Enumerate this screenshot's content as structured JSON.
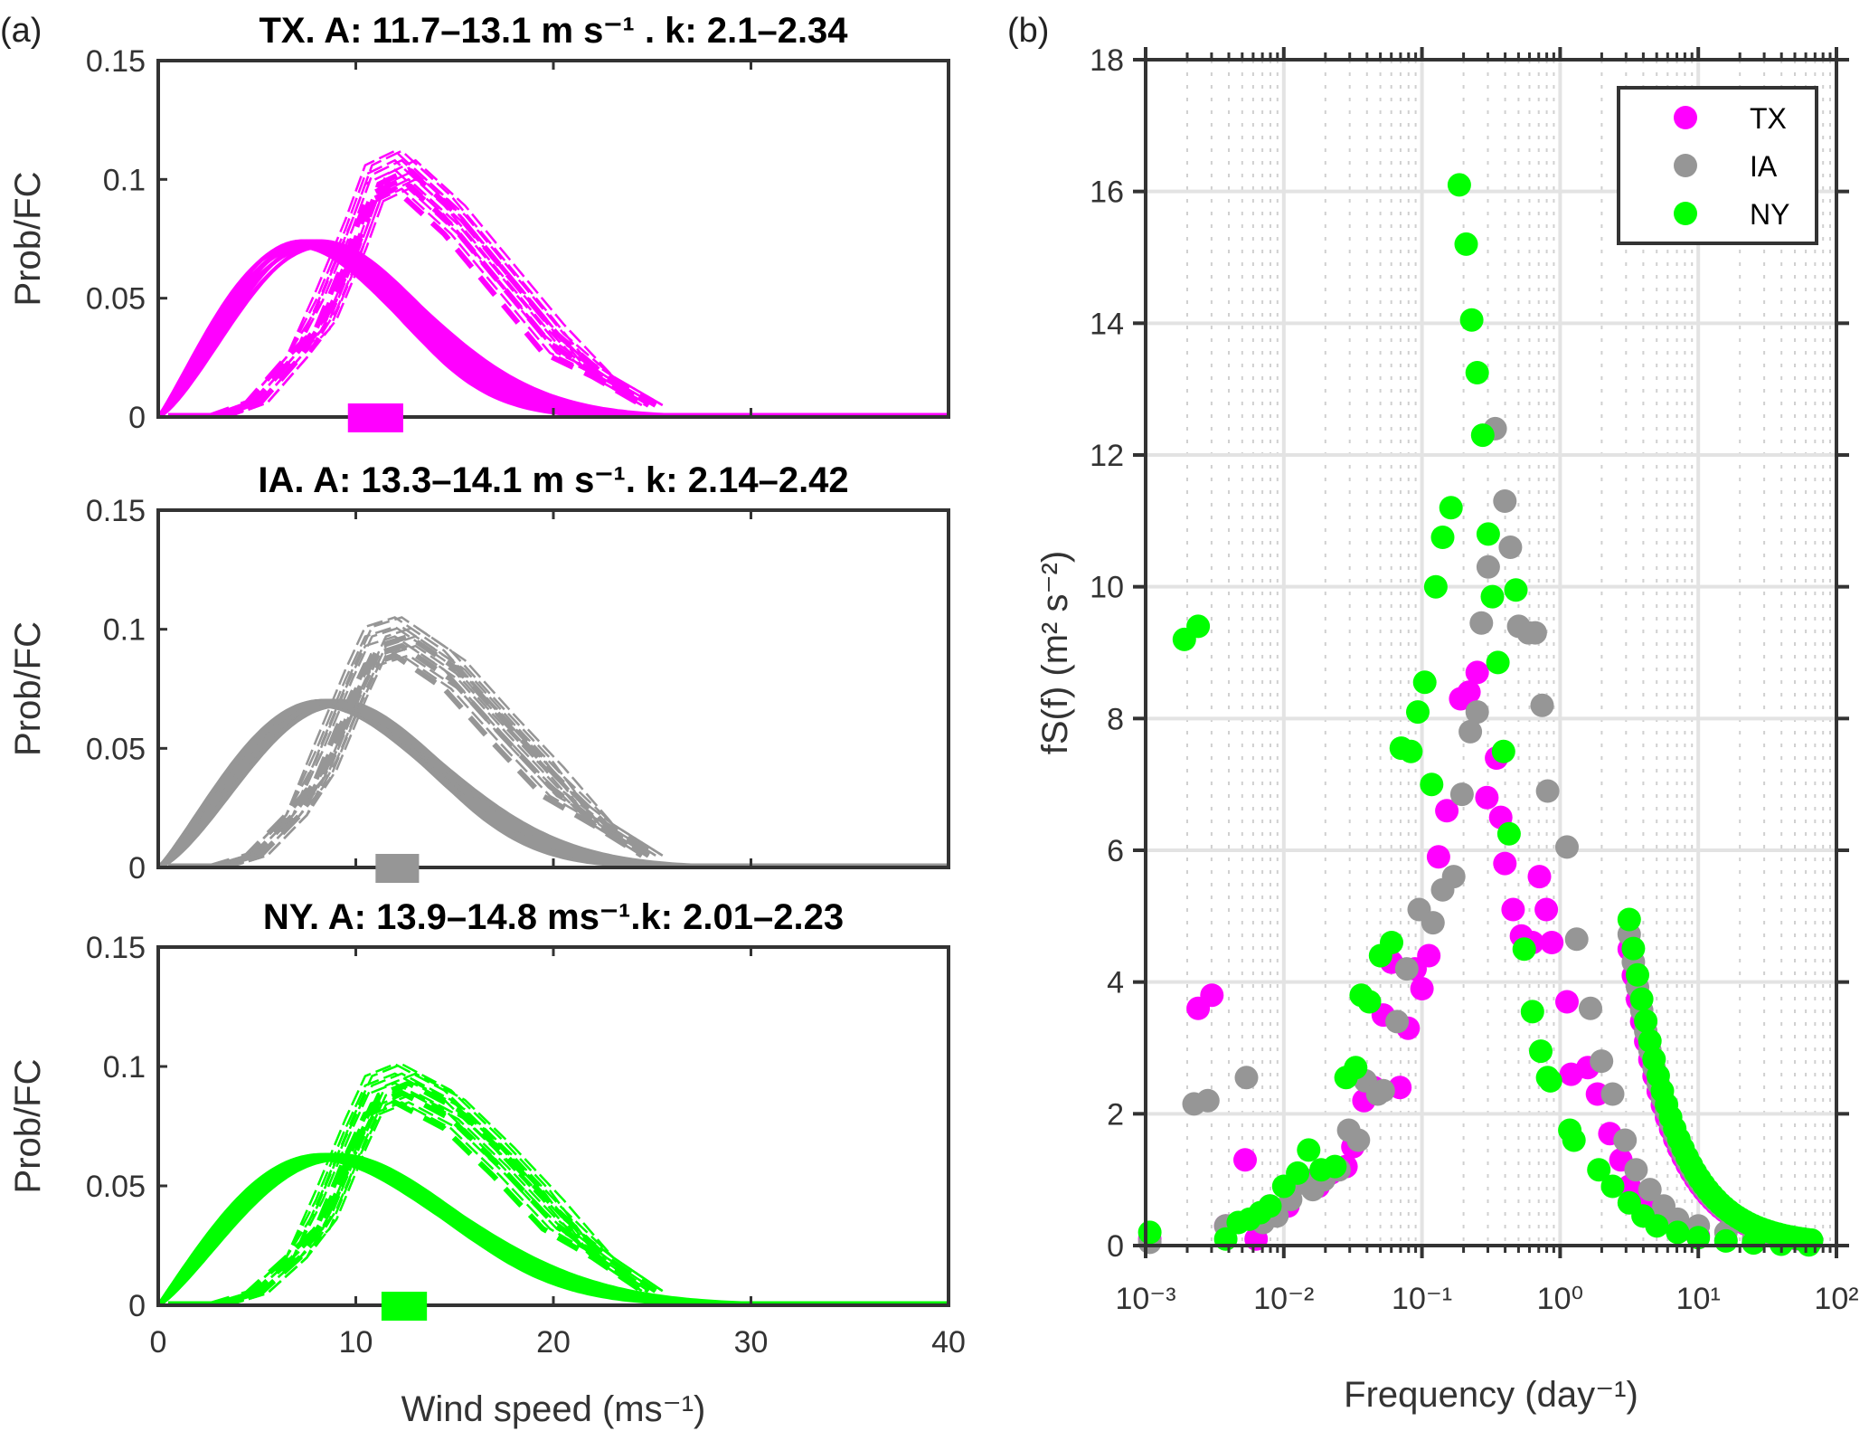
{
  "figure": {
    "panel_a_label": "(a)",
    "panel_b_label": "(b)"
  },
  "chart_data": [
    {
      "type": "line",
      "panel": "a-TX",
      "title": "TX. A: 11.7–13.1 m s⁻¹ . k: 2.1–2.34",
      "state": "TX",
      "color": "#ff00ff",
      "weibull_A_range": [
        11.7,
        13.1
      ],
      "weibull_k_range": [
        2.1,
        2.34
      ],
      "ylabel": "Prob/FC",
      "xlabel": "",
      "xlim": [
        0,
        40
      ],
      "ylim": [
        0,
        0.15
      ],
      "xticks": [
        0,
        10,
        20,
        30,
        40
      ],
      "yticks": [
        0,
        0.05,
        0.1,
        0.15
      ],
      "ytick_labels": [
        "0",
        "0.05",
        "0.1",
        "0.15"
      ],
      "marker_wind_range": [
        9.6,
        12.4
      ],
      "pdf_peak": 0.074,
      "fc_curve": {
        "x": [
          3,
          5,
          7,
          8.5,
          10,
          11,
          12.5,
          15,
          17.5,
          20,
          22.5,
          25
        ],
        "y": [
          0,
          0.006,
          0.025,
          0.045,
          0.075,
          0.098,
          0.104,
          0.085,
          0.06,
          0.035,
          0.017,
          0.005
        ]
      }
    },
    {
      "type": "line",
      "panel": "a-IA",
      "title": "IA. A: 13.3–14.1 m s⁻¹. k: 2.14–2.42",
      "state": "IA",
      "color": "#969696",
      "weibull_A_range": [
        13.3,
        14.1
      ],
      "weibull_k_range": [
        2.14,
        2.42
      ],
      "ylabel": "Prob/FC",
      "xlabel": "",
      "xlim": [
        0,
        40
      ],
      "ylim": [
        0,
        0.15
      ],
      "xticks": [
        0,
        10,
        20,
        30,
        40
      ],
      "yticks": [
        0,
        0.05,
        0.1,
        0.15
      ],
      "ytick_labels": [
        "0",
        "0.05",
        "0.1",
        "0.15"
      ],
      "marker_wind_range": [
        11.0,
        13.2
      ],
      "pdf_peak": 0.07,
      "fc_curve": {
        "x": [
          3,
          5,
          7,
          8.5,
          10,
          11,
          12.5,
          15,
          17.5,
          20,
          22.5,
          25
        ],
        "y": [
          0,
          0.005,
          0.022,
          0.045,
          0.075,
          0.093,
          0.097,
          0.083,
          0.06,
          0.038,
          0.018,
          0.005
        ]
      }
    },
    {
      "type": "line",
      "panel": "a-NY",
      "title": "NY. A: 13.9–14.8 ms⁻¹.k: 2.01–2.23",
      "state": "NY",
      "color": "#00ff00",
      "weibull_A_range": [
        13.9,
        14.8
      ],
      "weibull_k_range": [
        2.01,
        2.23
      ],
      "ylabel": "Prob/FC",
      "xlabel": "Wind speed (ms⁻¹)",
      "xlim": [
        0,
        40
      ],
      "ylim": [
        0,
        0.15
      ],
      "xticks": [
        0,
        10,
        20,
        30,
        40
      ],
      "xtick_labels": [
        "0",
        "10",
        "20",
        "30",
        "40"
      ],
      "yticks": [
        0,
        0.05,
        0.1,
        0.15
      ],
      "ytick_labels": [
        "0",
        "0.05",
        "0.1",
        "0.15"
      ],
      "marker_wind_range": [
        11.3,
        13.6
      ],
      "pdf_peak": 0.063,
      "fc_curve": {
        "x": [
          3,
          5,
          7,
          8.5,
          10,
          11,
          12.5,
          15,
          17.5,
          20,
          22.5,
          25
        ],
        "y": [
          0,
          0.005,
          0.02,
          0.04,
          0.07,
          0.088,
          0.093,
          0.082,
          0.062,
          0.04,
          0.02,
          0.006
        ]
      }
    },
    {
      "type": "scatter",
      "panel": "b",
      "xlabel": "Frequency (day⁻¹)",
      "ylabel": "fS(f) (m² s⁻²)",
      "xscale": "log",
      "xlim": [
        0.001,
        100
      ],
      "ylim": [
        0,
        18
      ],
      "xtick_labels": [
        "10⁻³",
        "10⁻²",
        "10⁻¹",
        "10⁰",
        "10¹",
        "10²"
      ],
      "yticks": [
        0,
        2,
        4,
        6,
        8,
        10,
        12,
        14,
        16,
        18
      ],
      "grid": true,
      "legend": {
        "position": "top-right",
        "entries": [
          "TX",
          "IA",
          "NY"
        ]
      },
      "series": [
        {
          "name": "TX",
          "color": "#ff00ff",
          "log10_f": [
            -2.97,
            -2.62,
            -2.52,
            -2.42,
            -2.28,
            -2.2,
            -2.1,
            -1.97,
            -1.85,
            -1.75,
            -1.66,
            -1.55,
            -1.5,
            -1.42,
            -1.35,
            -1.28,
            -1.22,
            -1.16,
            -1.1,
            -1.05,
            -1.0,
            -0.95,
            -0.88,
            -0.82,
            -0.72,
            -0.66,
            -0.6,
            -0.53,
            -0.46,
            -0.43,
            -0.4,
            -0.34,
            -0.28,
            -0.2,
            -0.15,
            -0.1,
            -0.06,
            0.05,
            0.08,
            0.2,
            0.27,
            0.36,
            0.44,
            0.5,
            0.6,
            0.7,
            0.8,
            0.9,
            1.0,
            1.2,
            1.4,
            1.6,
            1.8
          ],
          "fs": [
            0.1,
            3.6,
            3.8,
            0.3,
            1.3,
            0.1,
            0.6,
            0.6,
            1.0,
            0.9,
            1.1,
            1.2,
            1.5,
            2.2,
            2.4,
            3.5,
            4.3,
            2.4,
            3.3,
            4.2,
            3.9,
            4.4,
            5.9,
            6.6,
            8.3,
            8.4,
            8.7,
            6.8,
            7.4,
            6.5,
            5.8,
            5.1,
            4.7,
            4.6,
            5.6,
            5.1,
            4.6,
            3.7,
            2.6,
            2.7,
            2.3,
            1.7,
            1.3,
            0.9,
            0.7,
            0.5,
            0.35,
            0.25,
            0.15,
            0.08,
            0.05,
            0.03,
            0.02
          ]
        },
        {
          "name": "IA",
          "color": "#969696",
          "log10_f": [
            -2.97,
            -2.65,
            -2.55,
            -2.42,
            -2.27,
            -2.15,
            -2.05,
            -1.95,
            -1.87,
            -1.79,
            -1.71,
            -1.6,
            -1.53,
            -1.46,
            -1.41,
            -1.32,
            -1.28,
            -1.18,
            -1.11,
            -1.02,
            -0.92,
            -0.85,
            -0.77,
            -0.71,
            -0.65,
            -0.6,
            -0.57,
            -0.52,
            -0.47,
            -0.4,
            -0.36,
            -0.3,
            -0.23,
            -0.18,
            -0.13,
            -0.09,
            0.05,
            0.12,
            0.22,
            0.3,
            0.38,
            0.47,
            0.55,
            0.65,
            0.75,
            0.85,
            1.0,
            1.2,
            1.4,
            1.6,
            1.8
          ],
          "fs": [
            0.05,
            2.15,
            2.2,
            0.3,
            2.55,
            0.35,
            0.45,
            0.7,
            0.95,
            0.85,
            1.0,
            1.15,
            1.75,
            1.6,
            2.5,
            2.3,
            2.35,
            3.4,
            4.2,
            5.1,
            4.9,
            5.4,
            5.6,
            6.85,
            7.8,
            8.1,
            9.45,
            10.3,
            12.4,
            11.3,
            10.6,
            9.4,
            9.3,
            9.3,
            8.2,
            6.9,
            6.05,
            4.65,
            3.6,
            2.8,
            2.3,
            1.6,
            1.15,
            0.85,
            0.6,
            0.4,
            0.3,
            0.2,
            0.1,
            0.05,
            0.03
          ]
        },
        {
          "name": "NY",
          "color": "#00ff00",
          "log10_f": [
            -2.97,
            -2.72,
            -2.62,
            -2.42,
            -2.33,
            -2.25,
            -2.17,
            -2.1,
            -2.0,
            -1.9,
            -1.82,
            -1.73,
            -1.63,
            -1.55,
            -1.48,
            -1.44,
            -1.38,
            -1.3,
            -1.22,
            -1.15,
            -1.08,
            -1.03,
            -0.98,
            -0.93,
            -0.9,
            -0.85,
            -0.79,
            -0.73,
            -0.68,
            -0.64,
            -0.6,
            -0.56,
            -0.52,
            -0.49,
            -0.45,
            -0.41,
            -0.37,
            -0.32,
            -0.26,
            -0.2,
            -0.14,
            -0.09,
            -0.07,
            0.07,
            0.1,
            0.28,
            0.38,
            0.5,
            0.6,
            0.7,
            0.85,
            1.0,
            1.2,
            1.4,
            1.6,
            1.8
          ],
          "fs": [
            0.2,
            9.2,
            9.4,
            0.1,
            0.35,
            0.4,
            0.5,
            0.6,
            0.9,
            1.1,
            1.45,
            1.15,
            1.2,
            2.55,
            2.7,
            3.8,
            3.7,
            4.4,
            4.6,
            7.55,
            7.5,
            8.1,
            8.55,
            7.0,
            10.0,
            10.75,
            11.2,
            16.1,
            15.2,
            14.05,
            13.25,
            12.3,
            10.8,
            9.85,
            8.85,
            7.5,
            6.25,
            9.95,
            4.5,
            3.55,
            2.95,
            2.55,
            2.5,
            1.75,
            1.6,
            1.15,
            0.9,
            0.65,
            0.45,
            0.3,
            0.2,
            0.12,
            0.07,
            0.04,
            0.02,
            0.01
          ]
        }
      ]
    }
  ]
}
